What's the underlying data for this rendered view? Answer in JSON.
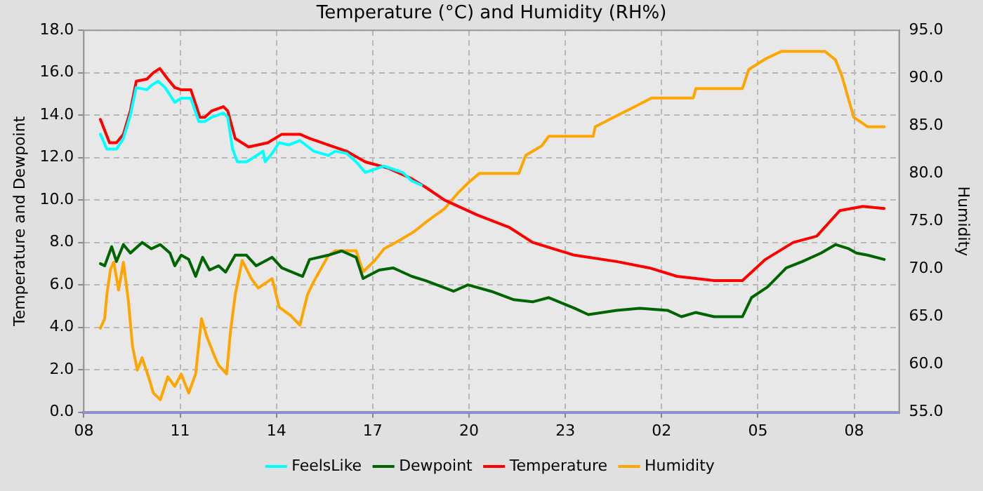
{
  "chart_data": {
    "type": "line",
    "title": "Temperature (°C) and Humidity (RH%)",
    "ylabel": "Temperature and Dewpoint",
    "y2label": "Humidity",
    "xlim": [
      "--01-01T08:00",
      "--01-02T09:24"
    ],
    "xticks": [
      {
        "value": "--01-01T08:00",
        "label": "08"
      },
      {
        "value": "--01-01T11:00",
        "label": "11"
      },
      {
        "value": "--01-01T14:00",
        "label": "14"
      },
      {
        "value": "--01-01T17:00",
        "label": "17"
      },
      {
        "value": "--01-01T20:00",
        "label": "20"
      },
      {
        "value": "--01-01T23:00",
        "label": "23"
      },
      {
        "value": "--01-02T02:00",
        "label": "02"
      },
      {
        "value": "--01-02T05:00",
        "label": "05"
      },
      {
        "value": "--01-02T08:00",
        "label": "08"
      }
    ],
    "ylim": [
      0,
      18
    ],
    "yticks": [
      {
        "value": 0,
        "label": "0.0"
      },
      {
        "value": 2,
        "label": "2.0"
      },
      {
        "value": 4,
        "label": "4.0"
      },
      {
        "value": 6,
        "label": "6.0"
      },
      {
        "value": 8,
        "label": "8.0"
      },
      {
        "value": 10,
        "label": "10.0"
      },
      {
        "value": 12,
        "label": "12.0"
      },
      {
        "value": 14,
        "label": "14.0"
      },
      {
        "value": 16,
        "label": "16.0"
      },
      {
        "value": 18,
        "label": "18.0"
      }
    ],
    "y2lim": [
      55,
      95
    ],
    "y2ticks": [
      {
        "value": 55,
        "label": "55.0"
      },
      {
        "value": 60,
        "label": "60.0"
      },
      {
        "value": 65,
        "label": "65.0"
      },
      {
        "value": 70,
        "label": "70.0"
      },
      {
        "value": 75,
        "label": "75.0"
      },
      {
        "value": 80,
        "label": "80.0"
      },
      {
        "value": 85,
        "label": "85.0"
      },
      {
        "value": 90,
        "label": "90.0"
      },
      {
        "value": 95,
        "label": "95.0"
      }
    ],
    "grid": true,
    "legend": "bottom",
    "marker": "none",
    "line_style": "solid",
    "series": [
      {
        "name": "FeelsLike",
        "color": "#00ffff",
        "x": [
          "--01-01T08:31",
          "--01-01T08:43",
          "--01-01T09:01",
          "--01-01T09:14",
          "--01-01T09:27",
          "--01-01T09:38",
          "--01-01T09:58",
          "--01-01T10:06",
          "--01-01T10:19",
          "--01-01T10:32",
          "--01-01T10:50",
          "--01-01T11:02",
          "--01-01T11:20",
          "--01-01T11:35",
          "--01-01T11:46",
          "--01-01T11:59",
          "--01-01T12:21",
          "--01-01T12:29",
          "--01-01T12:38",
          "--01-01T12:47",
          "--01-01T13:04",
          "--01-01T13:17",
          "--01-01T13:35",
          "--01-01T13:39",
          "--01-01T13:52",
          "--01-01T14:05",
          "--01-01T14:23",
          "--01-01T14:44",
          "--01-01T15:10",
          "--01-01T15:37",
          "--01-01T15:50",
          "--01-01T16:11",
          "--01-01T16:29",
          "--01-01T16:46",
          "--01-01T17:21",
          "--01-01T17:56",
          "--01-01T18:13",
          "--01-01T18:31"
        ],
        "values": [
          13.1,
          12.4,
          12.4,
          12.9,
          14.0,
          15.3,
          15.2,
          15.4,
          15.6,
          15.3,
          14.6,
          14.8,
          14.8,
          13.7,
          13.7,
          13.9,
          14.1,
          13.9,
          12.4,
          11.8,
          11.8,
          12.0,
          12.3,
          11.8,
          12.2,
          12.7,
          12.6,
          12.8,
          12.3,
          12.1,
          12.3,
          12.2,
          11.8,
          11.3,
          11.6,
          11.3,
          10.9,
          10.7
        ]
      },
      {
        "name": "Dewpoint",
        "color": "#006400",
        "x": [
          "--01-01T08:31",
          "--01-01T08:39",
          "--01-01T08:52",
          "--01-01T09:01",
          "--01-01T09:14",
          "--01-01T09:27",
          "--01-01T09:49",
          "--01-01T10:06",
          "--01-01T10:23",
          "--01-01T10:41",
          "--01-01T10:50",
          "--01-01T11:02",
          "--01-01T11:16",
          "--01-01T11:29",
          "--01-01T11:42",
          "--01-01T11:55",
          "--01-01T12:12",
          "--01-01T12:25",
          "--01-01T12:43",
          "--01-01T13:04",
          "--01-01T13:22",
          "--01-01T13:52",
          "--01-01T14:10",
          "--01-01T14:49",
          "--01-01T15:02",
          "--01-01T15:37",
          "--01-01T16:02",
          "--01-01T16:29",
          "--01-01T16:42",
          "--01-01T17:12",
          "--01-01T17:38",
          "--01-01T17:47",
          "--01-01T18:13",
          "--01-01T18:39",
          "--01-01T19:31",
          "--01-01T19:58",
          "--01-01T20:41",
          "--01-01T21:24",
          "--01-01T21:59",
          "--01-01T22:29",
          "--01-01T23:17",
          "--01-01T23:43",
          "--01-02T00:36",
          "--01-02T01:19",
          "--01-02T02:11",
          "--01-02T02:37",
          "--01-02T03:04",
          "--01-02T03:38",
          "--01-02T04:31",
          "--01-02T04:48",
          "--01-02T05:18",
          "--01-02T05:53",
          "--01-02T06:23",
          "--01-02T06:58",
          "--01-02T07:25",
          "--01-02T07:50",
          "--01-02T08:04",
          "--01-02T08:25",
          "--01-02T08:56"
        ],
        "values": [
          7.0,
          6.9,
          7.8,
          7.1,
          7.9,
          7.5,
          8.0,
          7.7,
          7.9,
          7.5,
          6.9,
          7.4,
          7.2,
          6.4,
          7.3,
          6.7,
          6.9,
          6.6,
          7.4,
          7.4,
          6.9,
          7.3,
          6.8,
          6.4,
          7.2,
          7.4,
          7.6,
          7.3,
          6.3,
          6.7,
          6.8,
          6.7,
          6.4,
          6.2,
          5.7,
          6.0,
          5.7,
          5.3,
          5.2,
          5.4,
          4.9,
          4.6,
          4.8,
          4.9,
          4.8,
          4.5,
          4.7,
          4.5,
          4.5,
          5.4,
          5.9,
          6.8,
          7.1,
          7.5,
          7.9,
          7.7,
          7.5,
          7.4,
          7.2
        ]
      },
      {
        "name": "Temperature",
        "color": "#ff0000",
        "x": [
          "--01-01T08:31",
          "--01-01T08:48",
          "--01-01T09:01",
          "--01-01T09:14",
          "--01-01T09:27",
          "--01-01T09:38",
          "--01-01T09:58",
          "--01-01T10:10",
          "--01-01T10:22",
          "--01-01T10:37",
          "--01-01T10:50",
          "--01-01T11:02",
          "--01-01T11:20",
          "--01-01T11:37",
          "--01-01T11:46",
          "--01-01T11:59",
          "--01-01T12:21",
          "--01-01T12:29",
          "--01-01T12:43",
          "--01-01T13:08",
          "--01-01T13:44",
          "--01-01T14:10",
          "--01-01T14:44",
          "--01-01T15:02",
          "--01-01T15:37",
          "--01-01T16:11",
          "--01-01T16:46",
          "--01-01T17:29",
          "--01-01T17:47",
          "--01-01T18:13",
          "--01-01T18:39",
          "--01-01T19:14",
          "--01-01T20:15",
          "--01-01T21:16",
          "--01-01T21:59",
          "--01-01T23:17",
          "--01-02T00:36",
          "--01-02T01:37",
          "--01-02T02:29",
          "--01-02T03:38",
          "--01-02T04:31",
          "--01-02T05:14",
          "--01-02T06:06",
          "--01-02T06:50",
          "--01-02T07:33",
          "--01-02T08:16",
          "--01-02T08:56"
        ],
        "values": [
          13.8,
          12.7,
          12.7,
          13.1,
          14.2,
          15.6,
          15.7,
          16.0,
          16.2,
          15.7,
          15.3,
          15.2,
          15.2,
          13.9,
          13.9,
          14.2,
          14.4,
          14.2,
          12.9,
          12.5,
          12.7,
          13.1,
          13.1,
          12.9,
          12.6,
          12.3,
          11.8,
          11.5,
          11.3,
          11.0,
          10.6,
          10.0,
          9.3,
          8.7,
          8.0,
          7.4,
          7.1,
          6.8,
          6.4,
          6.2,
          6.2,
          7.2,
          8.0,
          8.3,
          9.5,
          9.7,
          9.6
        ]
      },
      {
        "name": "Humidity",
        "color": "#ffa500",
        "axis": "y2",
        "x": [
          "--01-01T08:31",
          "--01-01T08:39",
          "--01-01T08:43",
          "--01-01T08:50",
          "--01-01T08:56",
          "--01-01T09:05",
          "--01-01T09:14",
          "--01-01T09:23",
          "--01-01T09:31",
          "--01-01T09:40",
          "--01-01T09:49",
          "--01-01T10:02",
          "--01-01T10:10",
          "--01-01T10:23",
          "--01-01T10:37",
          "--01-01T10:50",
          "--01-01T11:02",
          "--01-01T11:16",
          "--01-01T11:29",
          "--01-01T11:40",
          "--01-01T11:50",
          "--01-01T12:04",
          "--01-01T12:12",
          "--01-01T12:27",
          "--01-01T12:34",
          "--01-01T12:43",
          "--01-01T12:56",
          "--01-01T13:13",
          "--01-01T13:26",
          "--01-01T13:52",
          "--01-01T14:05",
          "--01-01T14:27",
          "--01-01T14:44",
          "--01-01T14:58",
          "--01-01T15:10",
          "--01-01T15:37",
          "--01-01T15:50",
          "--01-01T16:29",
          "--01-01T16:42",
          "--01-01T17:04",
          "--01-01T17:21",
          "--01-01T17:47",
          "--01-01T18:17",
          "--01-01T18:44",
          "--01-01T19:14",
          "--01-01T19:40",
          "--01-01T19:58",
          "--01-01T20:19",
          "--01-01T21:33",
          "--01-01T21:46",
          "--01-01T22:16",
          "--01-01T22:29",
          "--01-01T23:52",
          "--01-01T23:56",
          "--01-02T00:31",
          "--01-02T01:10",
          "--01-02T01:41",
          "--01-02T02:59",
          "--01-02T03:04",
          "--01-02T04:31",
          "--01-02T04:43",
          "--01-02T05:14",
          "--01-02T05:44",
          "--01-02T07:05",
          "--01-02T07:25",
          "--01-02T07:37",
          "--01-02T07:59",
          "--01-02T08:25",
          "--01-02T08:56"
        ],
        "values": [
          63.8,
          64.8,
          67.3,
          70.0,
          70.7,
          67.8,
          70.7,
          66.8,
          61.9,
          59.4,
          60.7,
          58.5,
          57.0,
          56.3,
          58.7,
          57.7,
          59.0,
          57.0,
          59.0,
          64.8,
          62.9,
          60.9,
          59.9,
          59.0,
          63.4,
          67.3,
          70.9,
          69.0,
          68.0,
          69.0,
          66.0,
          65.1,
          64.1,
          67.3,
          68.7,
          71.4,
          71.9,
          71.9,
          69.7,
          70.9,
          72.1,
          72.9,
          73.9,
          75.1,
          76.3,
          78.0,
          79.0,
          80.0,
          80.0,
          81.9,
          82.9,
          83.9,
          83.9,
          84.9,
          85.9,
          87.0,
          87.9,
          87.9,
          88.9,
          88.9,
          90.9,
          92.0,
          92.8,
          92.8,
          91.9,
          90.2,
          85.9,
          84.9,
          84.9
        ]
      }
    ]
  }
}
